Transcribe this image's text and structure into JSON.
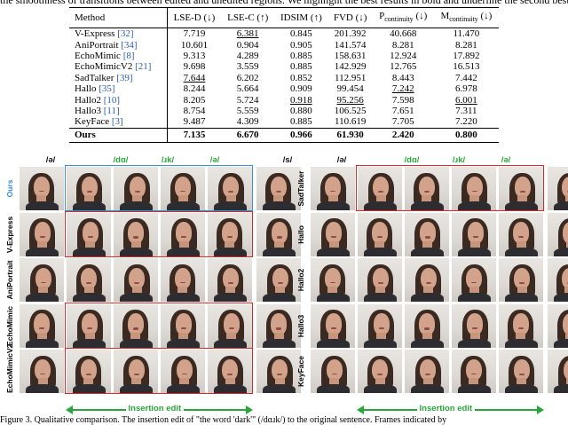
{
  "top_text": "the smoothness of transitions between edited and unedited regions. We highlight the best results in bold and underline the second best.",
  "table": {
    "headers": [
      "Method",
      "LSE-D (↓)",
      "LSE-C (↑)",
      "IDSIM (↑)",
      "FVD (↓)",
      "P",
      "continuity",
      " (↓)",
      "M",
      "continuity",
      " (↓)"
    ],
    "rows": [
      {
        "name": "V-Express",
        "ref": "[32]",
        "lsed": "7.719",
        "lsec": "6.381",
        "idsim": "0.845",
        "fvd": "201.392",
        "p": "40.668",
        "m": "11.470"
      },
      {
        "name": "AniPortrait",
        "ref": "[34]",
        "lsed": "10.601",
        "lsec": "0.904",
        "idsim": "0.905",
        "fvd": "141.574",
        "p": "8.281",
        "m": "8.281"
      },
      {
        "name": "EchoMimic",
        "ref": "[8]",
        "lsed": "9.313",
        "lsec": "4.289",
        "idsim": "0.885",
        "fvd": "158.631",
        "p": "12.924",
        "m": "17.892"
      },
      {
        "name": "EchoMimicV2",
        "ref": "[21]",
        "lsed": "9.698",
        "lsec": "3.559",
        "idsim": "0.885",
        "fvd": "142.929",
        "p": "12.765",
        "m": "16.513"
      },
      {
        "name": "SadTalker",
        "ref": "[39]",
        "lsed": "7.644",
        "lsec": "6.202",
        "idsim": "0.852",
        "fvd": "112.951",
        "p": "8.443",
        "m": "7.442"
      },
      {
        "name": "Hallo",
        "ref": "[35]",
        "lsed": "8.244",
        "lsec": "5.664",
        "idsim": "0.909",
        "fvd": "99.454",
        "p": "7.242",
        "m": "6.978"
      },
      {
        "name": "Hallo2",
        "ref": "[10]",
        "lsed": "8.205",
        "lsec": "5.724",
        "idsim": "0.918",
        "fvd": "95.256",
        "p": "7.598",
        "m": "6.001"
      },
      {
        "name": "Hallo3",
        "ref": "[11]",
        "lsed": "8.754",
        "lsec": "5.559",
        "idsim": "0.880",
        "fvd": "106.525",
        "p": "7.651",
        "m": "7.311"
      },
      {
        "name": "KeyFace",
        "ref": "[3]",
        "lsed": "9.487",
        "lsec": "4.309",
        "idsim": "0.885",
        "fvd": "110.619",
        "p": "7.705",
        "m": "7.220"
      }
    ],
    "ours": {
      "name": "Ours",
      "lsed": "7.135",
      "lsec": "6.670",
      "idsim": "0.966",
      "fvd": "61.930",
      "p": "2.420",
      "m": "0.800"
    }
  },
  "figure": {
    "phonemes": [
      "/ə/",
      "/dɑ/",
      "/ɹk/",
      "/ə/",
      "/s/"
    ],
    "left_rows": [
      "Ours",
      "V-Express",
      "AniPortrait",
      "EchoMimic",
      "EchoMimicV2"
    ],
    "right_rows": [
      "SadTalker",
      "Hallo",
      "Hallo2",
      "Hallo3",
      "KeyFace"
    ],
    "insertion_label": "Insertion edit",
    "colors": {
      "green": "#27a83a",
      "red": "#d62a2a",
      "blue": "#3b8fd6",
      "ours_label": "#3b8fd6"
    }
  },
  "caption": "Figure 3. Qualitative comparison. The insertion edit of \"the word 'dark'\" (/dɑɹk/) to the original sentence. Frames indicated by"
}
